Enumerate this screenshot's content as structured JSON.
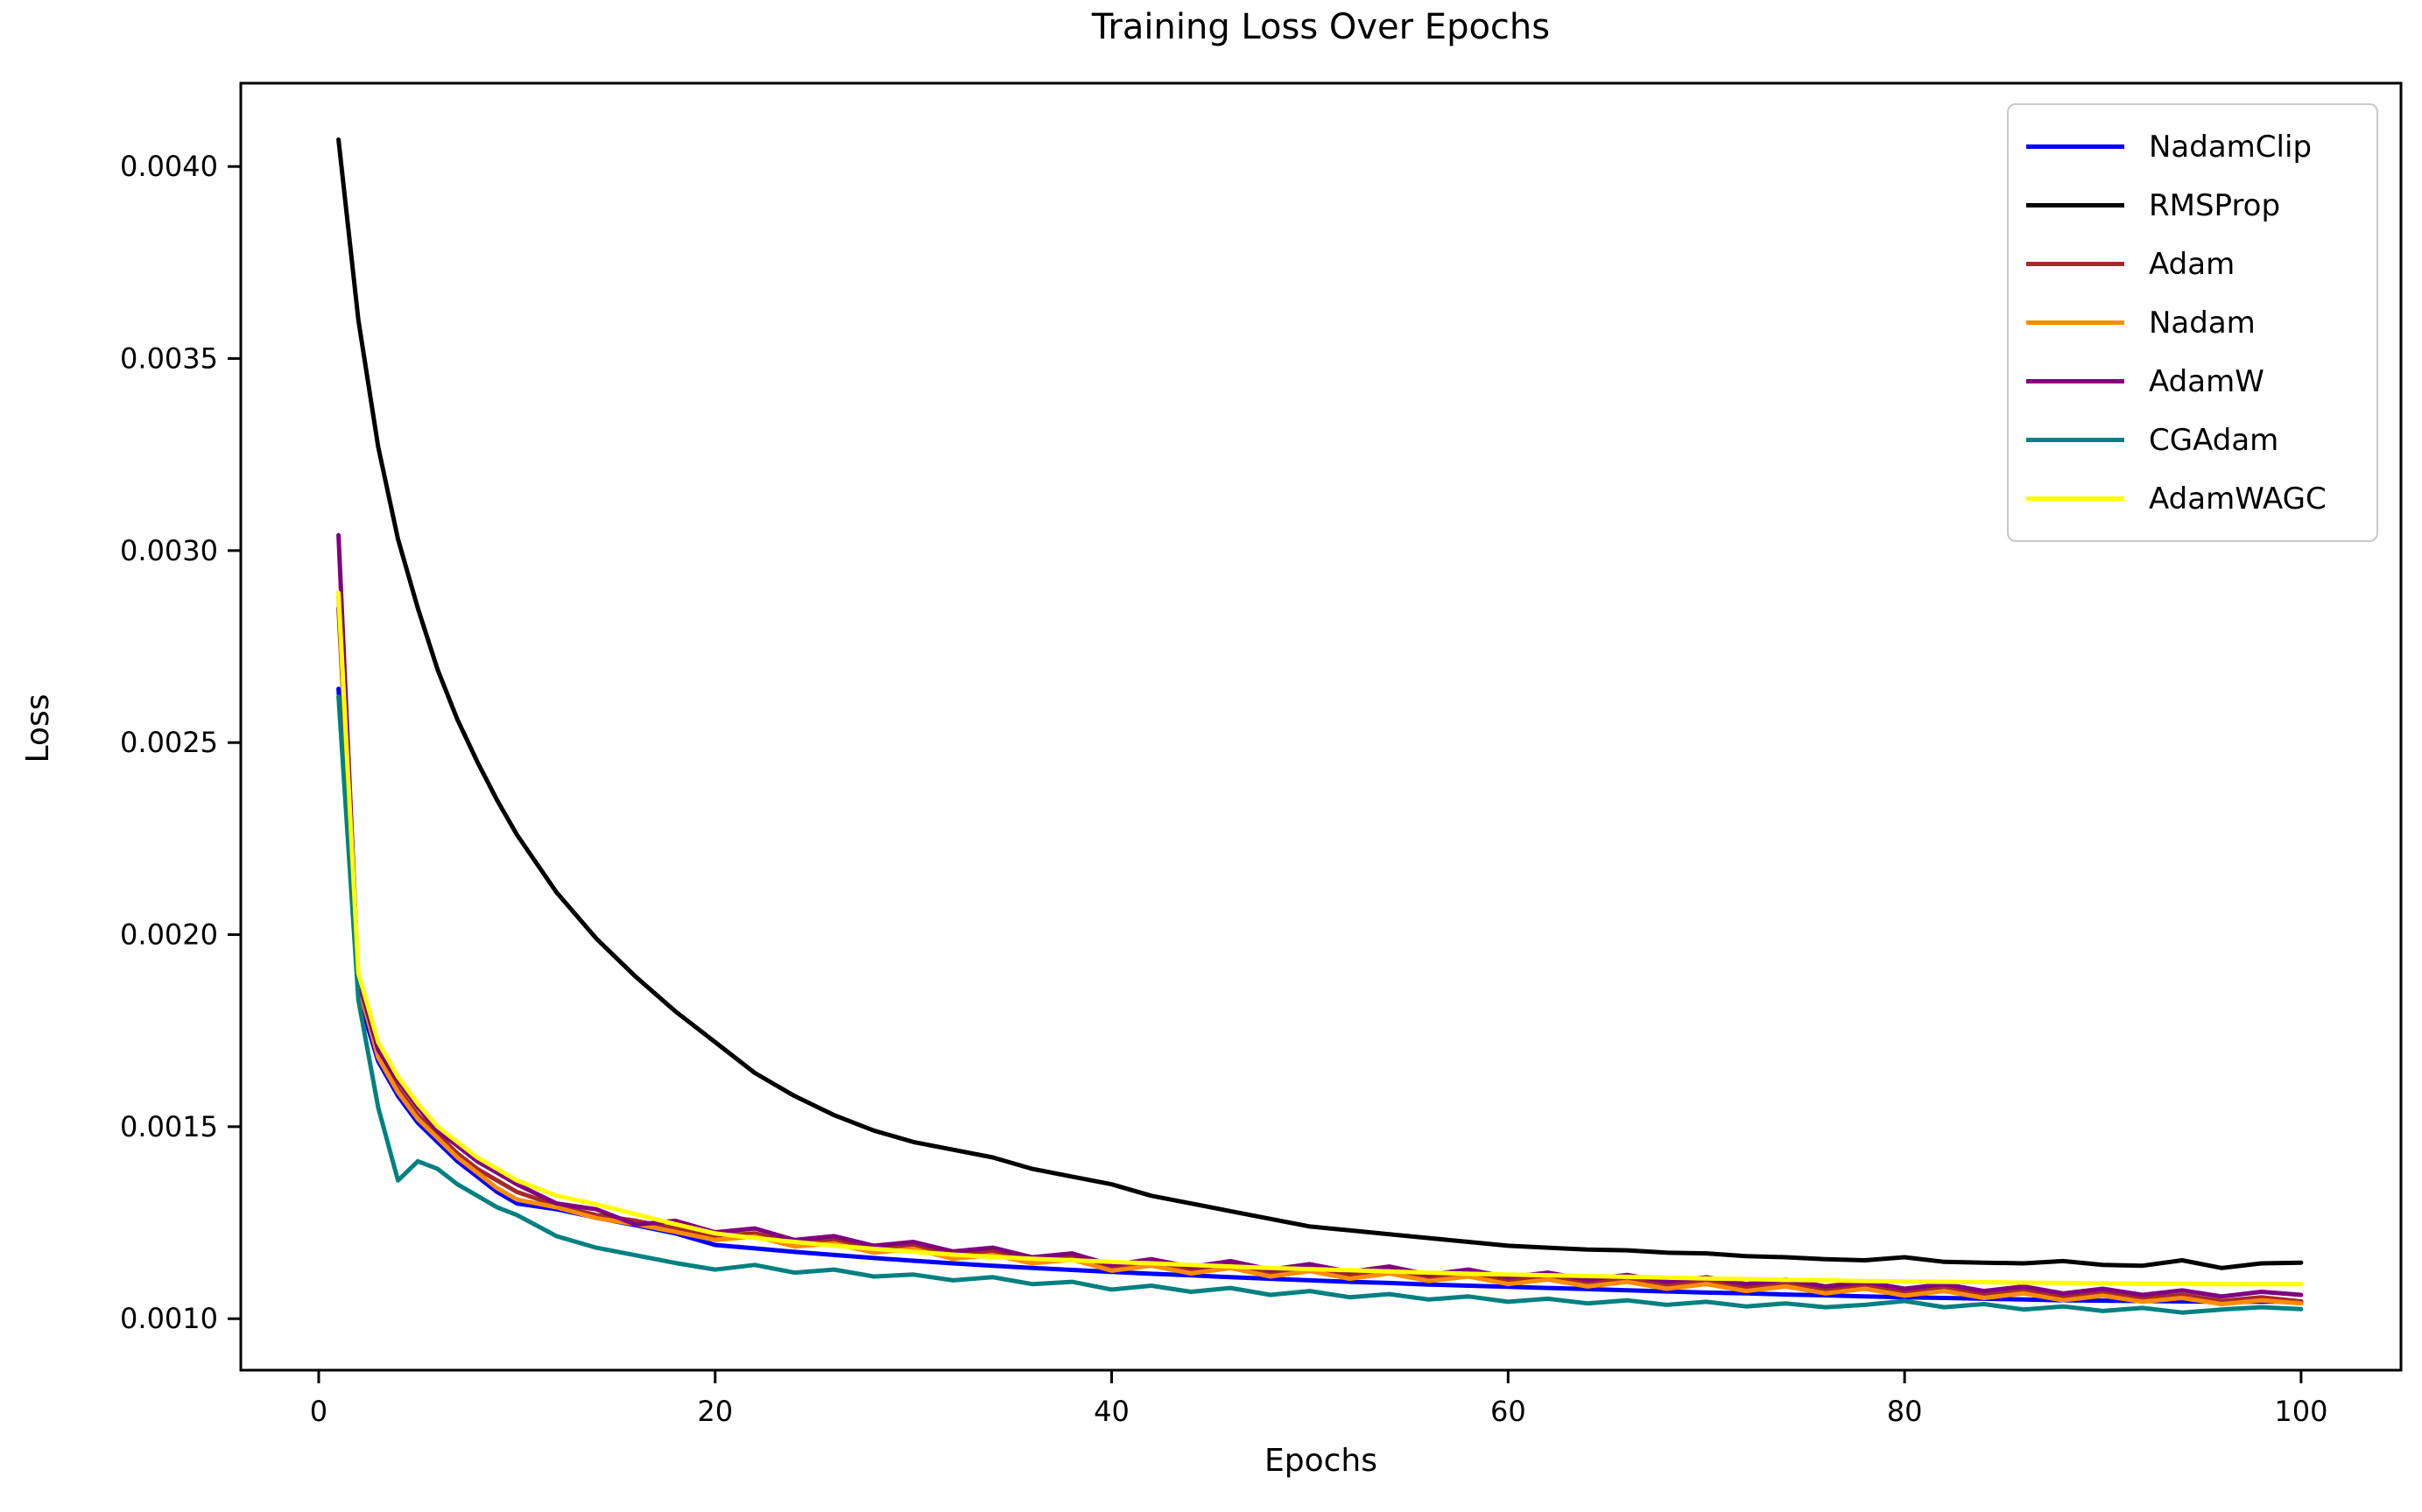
{
  "page_title": "Training Loss Over Epochs",
  "chart_data": {
    "type": "line",
    "title": "Training Loss Over Epochs",
    "xlabel": "Epochs",
    "ylabel": "Loss",
    "xlim": [
      -3.93,
      105.04
    ],
    "ylim": [
      0.000866,
      0.004217
    ],
    "grid": false,
    "legend_position": "upper right",
    "axis_color": "#000000",
    "xticks": {
      "values": [
        0,
        20,
        40,
        60,
        80,
        100
      ],
      "labels": [
        "0",
        "20",
        "40",
        "60",
        "80",
        "100"
      ]
    },
    "yticks": {
      "values": [
        0.001,
        0.0015,
        0.002,
        0.0025,
        0.003,
        0.0035,
        0.004
      ],
      "labels": [
        "0.0010",
        "0.0015",
        "0.0020",
        "0.0025",
        "0.0030",
        "0.0035",
        "0.0040"
      ]
    },
    "x": [
      1,
      2,
      3,
      4,
      5,
      6,
      7,
      8,
      9,
      10,
      12,
      14,
      16,
      18,
      20,
      22,
      24,
      26,
      28,
      30,
      32,
      34,
      36,
      38,
      40,
      42,
      44,
      46,
      48,
      50,
      52,
      54,
      56,
      58,
      60,
      62,
      64,
      66,
      68,
      70,
      72,
      74,
      76,
      78,
      80,
      82,
      84,
      86,
      88,
      90,
      92,
      94,
      96,
      98,
      100
    ],
    "series": [
      {
        "name": "NadamClip",
        "color": "#0000ff",
        "values": [
          0.00264,
          0.00184,
          0.00167,
          0.00158,
          0.00151,
          0.00146,
          0.00141,
          0.00137,
          0.00133,
          0.0013,
          0.001285,
          0.001263,
          0.001243,
          0.001222,
          0.001192,
          0.001183,
          0.001174,
          0.001166,
          0.001158,
          0.001151,
          0.001144,
          0.001138,
          0.001132,
          0.001127,
          0.001122,
          0.001117,
          0.001113,
          0.001108,
          0.001104,
          0.0011,
          0.001096,
          0.001093,
          0.001089,
          0.001086,
          0.001083,
          0.00108,
          0.001077,
          0.001074,
          0.001071,
          0.001068,
          0.001066,
          0.001063,
          0.001061,
          0.001058,
          0.001056,
          0.001054,
          0.001052,
          0.00105,
          0.001048,
          0.001047,
          0.001046,
          0.001045,
          0.001044,
          0.001044,
          0.001045
        ]
      },
      {
        "name": "RMSProp",
        "color": "#000000",
        "values": [
          0.00407,
          0.0036,
          0.00327,
          0.00303,
          0.00285,
          0.00269,
          0.00256,
          0.00245,
          0.00235,
          0.00226,
          0.00211,
          0.00199,
          0.00189,
          0.0018,
          0.00172,
          0.00164,
          0.00158,
          0.00153,
          0.00149,
          0.00146,
          0.00144,
          0.00142,
          0.00139,
          0.00137,
          0.00135,
          0.00132,
          0.0013,
          0.00128,
          0.00126,
          0.00124,
          0.00123,
          0.00122,
          0.00121,
          0.0012,
          0.00119,
          0.001185,
          0.00118,
          0.001178,
          0.001172,
          0.00117,
          0.001163,
          0.00116,
          0.001155,
          0.001152,
          0.00116,
          0.001148,
          0.001146,
          0.001144,
          0.00115,
          0.00114,
          0.001138,
          0.001152,
          0.001132,
          0.001144,
          0.001146
        ]
      },
      {
        "name": "Adam",
        "color": "#a52a2a",
        "values": [
          0.00285,
          0.00186,
          0.00169,
          0.0016,
          0.00153,
          0.00148,
          0.00143,
          0.00139,
          0.00136,
          0.00133,
          0.001295,
          0.00127,
          0.001255,
          0.001235,
          0.001215,
          0.001222,
          0.001196,
          0.001205,
          0.00118,
          0.00119,
          0.001165,
          0.001175,
          0.001152,
          0.001162,
          0.001132,
          0.001146,
          0.001126,
          0.00114,
          0.001118,
          0.001132,
          0.001112,
          0.001126,
          0.001106,
          0.001118,
          0.001098,
          0.00111,
          0.001092,
          0.001104,
          0.001086,
          0.001098,
          0.00108,
          0.001092,
          0.001074,
          0.001086,
          0.001068,
          0.00108,
          0.001062,
          0.001074,
          0.001056,
          0.001068,
          0.001052,
          0.001062,
          0.001046,
          0.001056,
          0.001045
        ]
      },
      {
        "name": "Nadam",
        "color": "#ff8c00",
        "values": [
          0.00288,
          0.00187,
          0.00168,
          0.00159,
          0.00152,
          0.00147,
          0.00142,
          0.00138,
          0.00134,
          0.00131,
          0.00129,
          0.001262,
          0.001246,
          0.001226,
          0.001205,
          0.001214,
          0.001188,
          0.001196,
          0.001172,
          0.001182,
          0.001156,
          0.001166,
          0.001144,
          0.001154,
          0.001125,
          0.001138,
          0.001118,
          0.001132,
          0.00111,
          0.001124,
          0.001104,
          0.001118,
          0.001098,
          0.00111,
          0.00109,
          0.001102,
          0.001084,
          0.001096,
          0.001078,
          0.00109,
          0.001072,
          0.001084,
          0.001066,
          0.001078,
          0.00106,
          0.001072,
          0.001054,
          0.001066,
          0.001048,
          0.00106,
          0.001044,
          0.001054,
          0.001038,
          0.001048,
          0.00104
        ]
      },
      {
        "name": "AdamW",
        "color": "#800080",
        "values": [
          0.00304,
          0.00188,
          0.0017,
          0.00162,
          0.00155,
          0.00149,
          0.00145,
          0.00141,
          0.00138,
          0.00135,
          0.0013,
          0.001285,
          0.001245,
          0.001255,
          0.001225,
          0.001235,
          0.001205,
          0.001215,
          0.00119,
          0.0012,
          0.001175,
          0.001185,
          0.00116,
          0.00117,
          0.00114,
          0.001155,
          0.001135,
          0.00115,
          0.001128,
          0.001142,
          0.001122,
          0.001136,
          0.001115,
          0.001128,
          0.001108,
          0.00112,
          0.001102,
          0.001114,
          0.001096,
          0.001108,
          0.00109,
          0.001102,
          0.001084,
          0.001096,
          0.001078,
          0.00109,
          0.001072,
          0.001084,
          0.001066,
          0.001078,
          0.001062,
          0.001074,
          0.001058,
          0.00107,
          0.001062
        ]
      },
      {
        "name": "CGAdam",
        "color": "#008080",
        "values": [
          0.00262,
          0.00183,
          0.00155,
          0.00136,
          0.00141,
          0.00139,
          0.00135,
          0.00132,
          0.00129,
          0.00127,
          0.001215,
          0.001185,
          0.001165,
          0.001145,
          0.001128,
          0.00114,
          0.00112,
          0.001128,
          0.00111,
          0.001115,
          0.0011,
          0.001108,
          0.00109,
          0.001096,
          0.001076,
          0.001086,
          0.00107,
          0.00108,
          0.001062,
          0.001072,
          0.001056,
          0.001064,
          0.00105,
          0.001058,
          0.001044,
          0.001052,
          0.00104,
          0.001048,
          0.001036,
          0.001044,
          0.001032,
          0.00104,
          0.00103,
          0.001036,
          0.001046,
          0.00103,
          0.001038,
          0.001024,
          0.001032,
          0.00102,
          0.001028,
          0.001016,
          0.001024,
          0.00103,
          0.001025
        ]
      },
      {
        "name": "AdamWAGC",
        "color": "#ffff00",
        "values": [
          0.00289,
          0.0019,
          0.00172,
          0.00163,
          0.00156,
          0.0015,
          0.00146,
          0.00142,
          0.00139,
          0.00136,
          0.00132,
          0.001298,
          0.001272,
          0.001246,
          0.001222,
          0.00121,
          0.0012,
          0.00119,
          0.001182,
          0.001174,
          0.001167,
          0.001161,
          0.001156,
          0.001152,
          0.001148,
          0.001144,
          0.00114,
          0.001136,
          0.001132,
          0.001129,
          0.001126,
          0.001123,
          0.00112,
          0.001117,
          0.001115,
          0.001113,
          0.001111,
          0.001109,
          0.001107,
          0.001105,
          0.001103,
          0.001101,
          0.0011,
          0.001098,
          0.001097,
          0.001096,
          0.001095,
          0.001094,
          0.001093,
          0.001092,
          0.001091,
          0.001091,
          0.00109,
          0.00109,
          0.00109
        ]
      }
    ]
  }
}
